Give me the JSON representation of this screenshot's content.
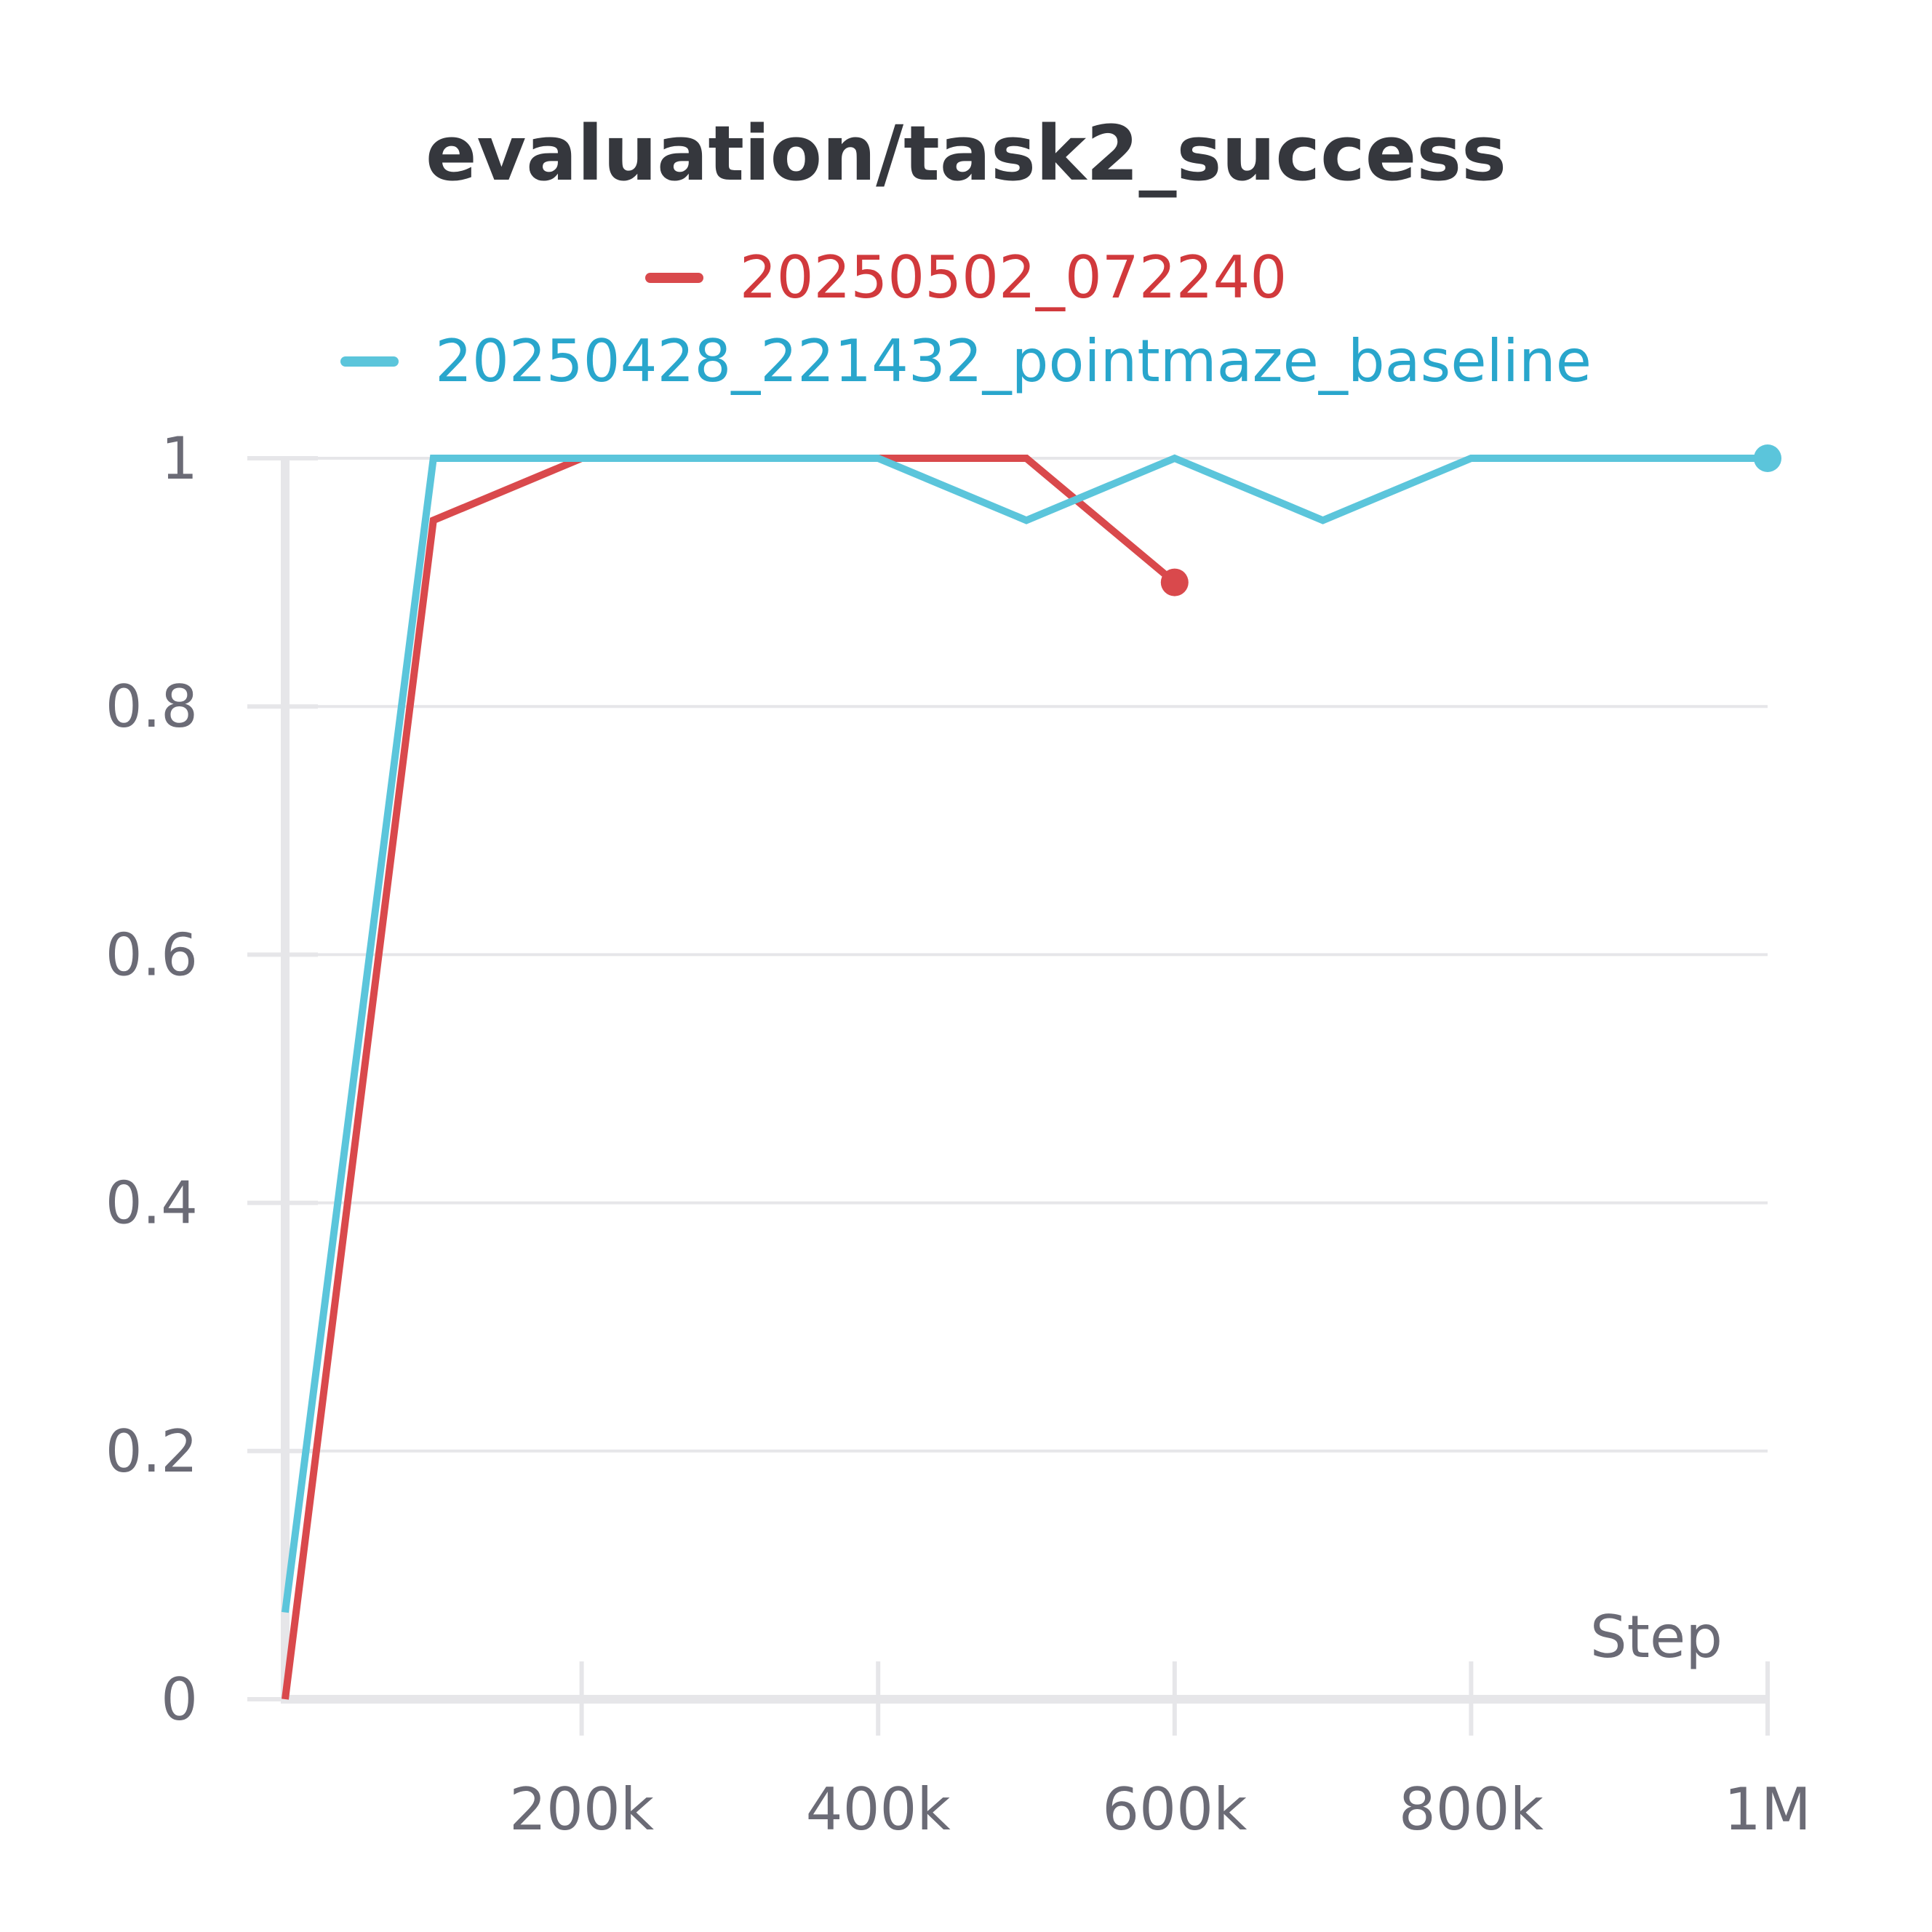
{
  "chart_data": {
    "type": "line",
    "title": "evaluation/task2_success",
    "xlabel": "Step",
    "ylabel": "",
    "xlim": [
      0,
      1000000
    ],
    "ylim": [
      0,
      1
    ],
    "x_ticks": [
      {
        "value": 200000,
        "label": "200k"
      },
      {
        "value": 400000,
        "label": "400k"
      },
      {
        "value": 600000,
        "label": "600k"
      },
      {
        "value": 800000,
        "label": "800k"
      },
      {
        "value": 1000000,
        "label": "1M"
      }
    ],
    "y_ticks": [
      {
        "value": 0,
        "label": "0"
      },
      {
        "value": 0.2,
        "label": "0.2"
      },
      {
        "value": 0.4,
        "label": "0.4"
      },
      {
        "value": 0.6,
        "label": "0.6"
      },
      {
        "value": 0.8,
        "label": "0.8"
      },
      {
        "value": 1,
        "label": "1"
      }
    ],
    "grid": true,
    "legend_position": "top-center",
    "series": [
      {
        "name": "20250502_072240",
        "color": "#d9494c",
        "x": [
          0,
          100000,
          200000,
          300000,
          400000,
          500000,
          600000
        ],
        "y": [
          0,
          0.95,
          1,
          1,
          1,
          1,
          0.9
        ]
      },
      {
        "name": "20250428_221432_pointmaze_baseline",
        "color": "#5bc5db",
        "x": [
          0,
          100000,
          200000,
          300000,
          400000,
          500000,
          600000,
          700000,
          800000,
          900000,
          1000000
        ],
        "y": [
          0.07,
          1,
          1,
          1,
          1,
          0.95,
          1,
          0.95,
          1,
          1,
          1
        ]
      }
    ]
  },
  "legend_text_colors": [
    "#d1393c",
    "#29a6cc"
  ]
}
